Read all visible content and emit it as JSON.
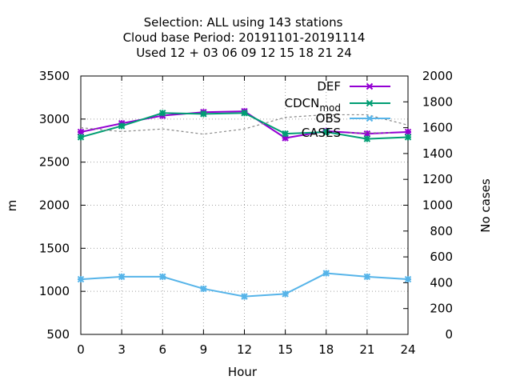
{
  "chart_data": {
    "type": "line",
    "title_lines": [
      "Selection: ALL using   143 stations",
      "Cloud base   Period: 20191101-20191114",
      "Used  12 + 03 06 09 12 15 18 21 24"
    ],
    "xlabel": "Hour",
    "ylabel": "m",
    "y2label": "No cases",
    "xlim": [
      0,
      24
    ],
    "ylim": [
      500,
      3500
    ],
    "y2lim": [
      0,
      2000
    ],
    "x_ticks": [
      0,
      3,
      6,
      9,
      12,
      15,
      18,
      21,
      24
    ],
    "y_ticks": [
      500,
      1000,
      1500,
      2000,
      2500,
      3000,
      3500
    ],
    "y2_ticks": [
      0,
      200,
      400,
      600,
      800,
      1000,
      1200,
      1400,
      1600,
      1800,
      2000
    ],
    "grid": true,
    "legend_position": "top-right",
    "x": [
      0,
      3,
      6,
      9,
      12,
      15,
      18,
      21,
      24
    ],
    "series": [
      {
        "name": "DEF",
        "axis": "y",
        "color": "#9400d3",
        "marker": "x",
        "values": [
          2850,
          2950,
          3040,
          3080,
          3090,
          2780,
          2860,
          2830,
          2850
        ]
      },
      {
        "name": "CDCN_mod",
        "axis": "y",
        "color": "#009e73",
        "marker": "x",
        "values": [
          2790,
          2920,
          3070,
          3060,
          3070,
          2830,
          2850,
          2770,
          2790
        ]
      },
      {
        "name": "OBS",
        "axis": "y",
        "color": "#56b4e9",
        "marker": "x",
        "values": [
          1140,
          1170,
          1170,
          1030,
          940,
          970,
          1210,
          1170,
          1140
        ]
      },
      {
        "name": "CASES",
        "axis": "y2",
        "color": "#888888",
        "dash": true,
        "values": [
          1600,
          1570,
          1590,
          1550,
          1590,
          1680,
          1700,
          1700,
          1620
        ]
      }
    ]
  }
}
